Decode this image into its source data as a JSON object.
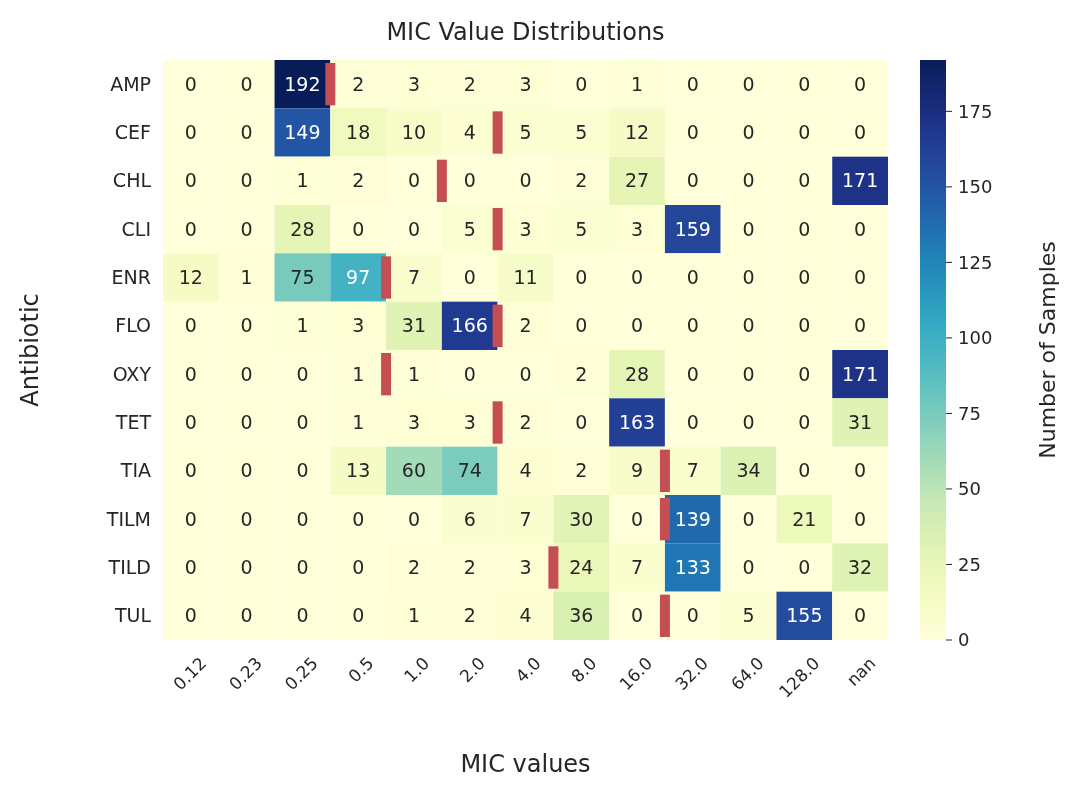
{
  "chart_data": {
    "type": "heatmap",
    "title": "MIC Value Distributions",
    "xlabel": "MIC values",
    "ylabel": "Antibiotic",
    "clabel": "Number of Samples",
    "categories": [
      "0.12",
      "0.23",
      "0.25",
      "0.5",
      "1.0",
      "2.0",
      "4.0",
      "8.0",
      "16.0",
      "32.0",
      "64.0",
      "128.0",
      "nan"
    ],
    "y_categories": [
      "AMP",
      "CEF",
      "CHL",
      "CLI",
      "ENR",
      "FLO",
      "OXY",
      "TET",
      "TIA",
      "TILM",
      "TILD",
      "TUL"
    ],
    "cells": [
      [
        0,
        0,
        192,
        2,
        3,
        2,
        3,
        0,
        1,
        0,
        0,
        0,
        0
      ],
      [
        0,
        0,
        149,
        18,
        10,
        4,
        5,
        5,
        12,
        0,
        0,
        0,
        0
      ],
      [
        0,
        0,
        1,
        2,
        0,
        0,
        0,
        2,
        27,
        0,
        0,
        0,
        171
      ],
      [
        0,
        0,
        28,
        0,
        0,
        5,
        3,
        5,
        3,
        159,
        0,
        0,
        0
      ],
      [
        12,
        1,
        75,
        97,
        7,
        0,
        11,
        0,
        0,
        0,
        0,
        0,
        0
      ],
      [
        0,
        0,
        1,
        3,
        31,
        166,
        2,
        0,
        0,
        0,
        0,
        0,
        0
      ],
      [
        0,
        0,
        0,
        1,
        1,
        0,
        0,
        2,
        28,
        0,
        0,
        0,
        171
      ],
      [
        0,
        0,
        0,
        1,
        3,
        3,
        2,
        0,
        163,
        0,
        0,
        0,
        31
      ],
      [
        0,
        0,
        0,
        13,
        60,
        74,
        4,
        2,
        9,
        7,
        34,
        0,
        0
      ],
      [
        0,
        0,
        0,
        0,
        0,
        6,
        7,
        30,
        0,
        139,
        0,
        21,
        0
      ],
      [
        0,
        0,
        0,
        0,
        2,
        2,
        3,
        24,
        7,
        133,
        0,
        0,
        32
      ],
      [
        0,
        0,
        0,
        0,
        1,
        2,
        4,
        36,
        0,
        0,
        5,
        155,
        0
      ]
    ],
    "data_labels": true,
    "clim": [
      0,
      192
    ],
    "cticks": [
      0,
      25,
      50,
      75,
      100,
      125,
      150,
      175
    ]
  }
}
